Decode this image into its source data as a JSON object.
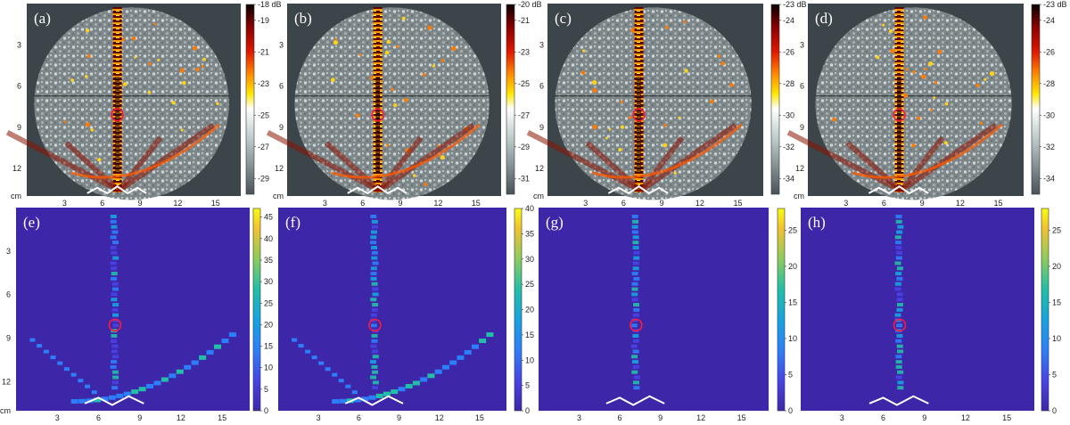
{
  "panels": [
    {
      "id": "a",
      "label": "(a)",
      "kind": "db",
      "cbar_ticks": [
        "-18 dB",
        "-19",
        "-21",
        "-23",
        "-25",
        "-27",
        "-29"
      ],
      "cbar_vals": [
        -18,
        -19,
        -21,
        -23,
        -25,
        -27,
        -29
      ],
      "cbar_range": [
        -18,
        -30
      ]
    },
    {
      "id": "b",
      "label": "(b)",
      "kind": "db",
      "cbar_ticks": [
        "-20 dB",
        "-21",
        "-23",
        "-25",
        "-27",
        "-29",
        "-31"
      ],
      "cbar_vals": [
        -20,
        -21,
        -23,
        -25,
        -27,
        -29,
        -31
      ],
      "cbar_range": [
        -20,
        -32
      ]
    },
    {
      "id": "c",
      "label": "(c)",
      "kind": "db",
      "cbar_ticks": [
        "-23 dB",
        "-24",
        "-26",
        "-28",
        "-30",
        "-32",
        "-34"
      ],
      "cbar_vals": [
        -23,
        -24,
        -26,
        -28,
        -30,
        -32,
        -34
      ],
      "cbar_range": [
        -23,
        -35
      ]
    },
    {
      "id": "d",
      "label": "(d)",
      "kind": "db",
      "cbar_ticks": [
        "-23 dB",
        "-24",
        "-26",
        "-28",
        "-30",
        "-32",
        "-34"
      ],
      "cbar_vals": [
        -23,
        -24,
        -26,
        -28,
        -30,
        -32,
        -34
      ],
      "cbar_range": [
        -23,
        -35
      ]
    },
    {
      "id": "e",
      "label": "(e)",
      "kind": "lin",
      "cbar_ticks": [
        "0",
        "5",
        "10",
        "15",
        "20",
        "25",
        "30",
        "35",
        "40",
        "45"
      ],
      "cbar_vals": [
        0,
        5,
        10,
        15,
        20,
        25,
        30,
        35,
        40,
        45
      ],
      "cbar_range": [
        0,
        47
      ]
    },
    {
      "id": "f",
      "label": "(f)",
      "kind": "lin",
      "cbar_ticks": [
        "0",
        "5",
        "10",
        "15",
        "20",
        "25",
        "30",
        "35",
        "40"
      ],
      "cbar_vals": [
        0,
        5,
        10,
        15,
        20,
        25,
        30,
        35,
        40
      ],
      "cbar_range": [
        0,
        40
      ]
    },
    {
      "id": "g",
      "label": "(g)",
      "kind": "lin",
      "cbar_ticks": [
        "0",
        "5",
        "10",
        "15",
        "20",
        "25"
      ],
      "cbar_vals": [
        0,
        5,
        10,
        15,
        20,
        25
      ],
      "cbar_range": [
        0,
        28
      ]
    },
    {
      "id": "h",
      "label": "(h)",
      "kind": "lin",
      "cbar_ticks": [
        "0",
        "5",
        "10",
        "15",
        "20",
        "25"
      ],
      "cbar_vals": [
        0,
        5,
        10,
        15,
        20,
        25
      ],
      "cbar_range": [
        0,
        28
      ]
    }
  ],
  "chart_data": {
    "type": "heatmap",
    "title": "",
    "xlabel": "cm",
    "ylabel": "cm",
    "x_ticks": [
      "3",
      "6",
      "9",
      "12",
      "15"
    ],
    "x_tick_vals": [
      3,
      6,
      9,
      12,
      15
    ],
    "y_ticks": [
      "3",
      "6",
      "9",
      "12"
    ],
    "y_tick_vals": [
      3,
      6,
      9,
      12
    ],
    "unit_label": "cm",
    "xlim": [
      0,
      17
    ],
    "ylim": [
      0,
      14
    ],
    "target_marker": {
      "x_cm": 7.2,
      "y_cm": 8.1
    }
  }
}
